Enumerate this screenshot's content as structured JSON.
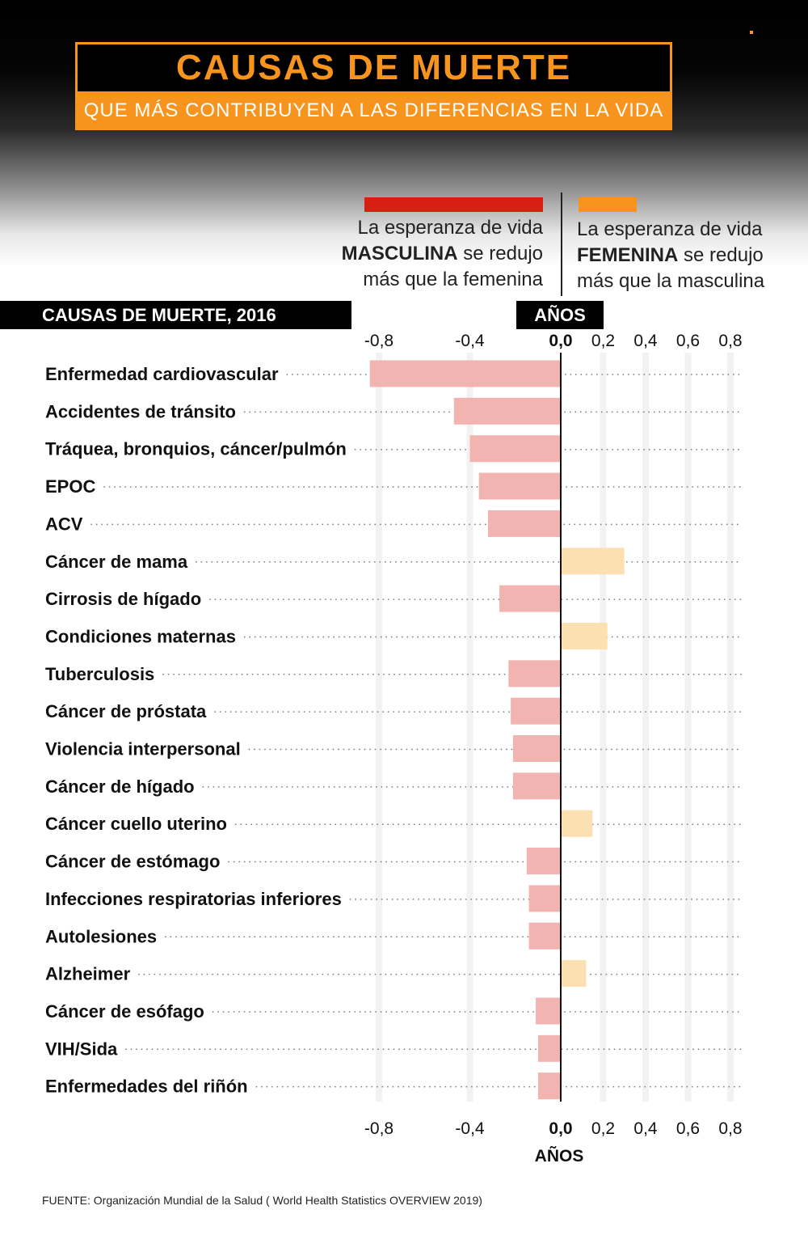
{
  "header": {
    "title": "CAUSAS DE MUERTE",
    "subtitle": "QUE MÁS CONTRIBUYEN A LAS DIFERENCIAS EN LA VIDA"
  },
  "legend": {
    "male": {
      "line1": "La esperanza de vida",
      "bold": "MASCULINA",
      "rest": " se redujo",
      "line3": "más que la femenina"
    },
    "female": {
      "line1": "La esperanza de vida",
      "bold": "FEMENINA",
      "rest": " se redujo",
      "line3": "más que la masculina"
    }
  },
  "section_label": "CAUSAS DE MUERTE, 2016",
  "unit_label": "AÑOS",
  "source": "FUENTE: Organización Mundial de la Salud ( World Health Statistics OVERVIEW 2019)",
  "colors": {
    "male": "#d91f11",
    "female": "#f7941d",
    "male_bar": "#f2b4b0",
    "female_bar": "#fde0b2",
    "accent": "#f7941d"
  },
  "chart_data": {
    "type": "bar",
    "orientation": "horizontal",
    "xlabel": "AÑOS",
    "xlim": [
      -0.8,
      0.8
    ],
    "x_ticks": [
      -0.8,
      -0.4,
      0.0,
      0.2,
      0.4,
      0.6,
      0.8
    ],
    "x_tick_labels": [
      "-0,8",
      "-0,4",
      "0,0",
      "0,2",
      "0,4",
      "0,6",
      "0,8"
    ],
    "categories": [
      "Enfermedad cardiovascular",
      "Accidentes de tránsito",
      "Tráquea, bronquios, cáncer/pulmón",
      "EPOC",
      "ACV",
      "Cáncer de mama",
      "Cirrosis de hígado",
      "Condiciones maternas",
      "Tuberculosis",
      "Cáncer de próstata",
      "Violencia interpersonal",
      "Cáncer de hígado",
      "Cáncer cuello uterino",
      "Cáncer de estómago",
      "Infecciones respiratorias inferiores",
      "Autolesiones",
      "Alzheimer",
      "Cáncer de esófago",
      "VIH/Sida",
      "Enfermedades del riñón"
    ],
    "values": [
      -0.84,
      -0.47,
      -0.4,
      -0.36,
      -0.32,
      0.3,
      -0.27,
      0.22,
      -0.23,
      -0.22,
      -0.21,
      -0.21,
      0.15,
      -0.15,
      -0.14,
      -0.14,
      0.12,
      -0.11,
      -0.1,
      -0.1
    ],
    "grid": true
  }
}
